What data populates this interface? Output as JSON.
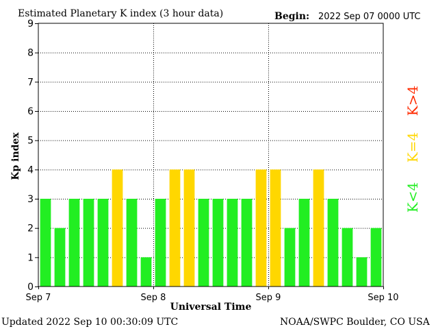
{
  "header": {
    "title": "Estimated Planetary K index (3 hour data)",
    "begin_label": "Begin:",
    "begin_value": "2022 Sep 07 0000 UTC"
  },
  "footer": {
    "updated": "Updated 2022 Sep 10 00:30:09 UTC",
    "source": "NOAA/SWPC Boulder, CO USA"
  },
  "legend": {
    "below": {
      "label": "K<4",
      "color": "#22ee22"
    },
    "equal": {
      "label": "K=4",
      "color": "#ffd700"
    },
    "above": {
      "label": "K>4",
      "color": "#ff2a00"
    }
  },
  "chart_data": {
    "type": "bar",
    "title": "Estimated Planetary K index (3 hour data)",
    "xlabel": "Universal Time",
    "ylabel": "Kp index",
    "ylim": [
      0,
      9
    ],
    "yticks": [
      0,
      1,
      2,
      3,
      4,
      5,
      6,
      7,
      8,
      9
    ],
    "xtick_labels": [
      "Sep 7",
      "Sep 8",
      "Sep 9",
      "Sep 10"
    ],
    "grid": true,
    "values": [
      3,
      2,
      3,
      3,
      3,
      4,
      3,
      1,
      3,
      4,
      4,
      3,
      3,
      3,
      3,
      4,
      4,
      2,
      3,
      4,
      3,
      2,
      1,
      2
    ]
  }
}
